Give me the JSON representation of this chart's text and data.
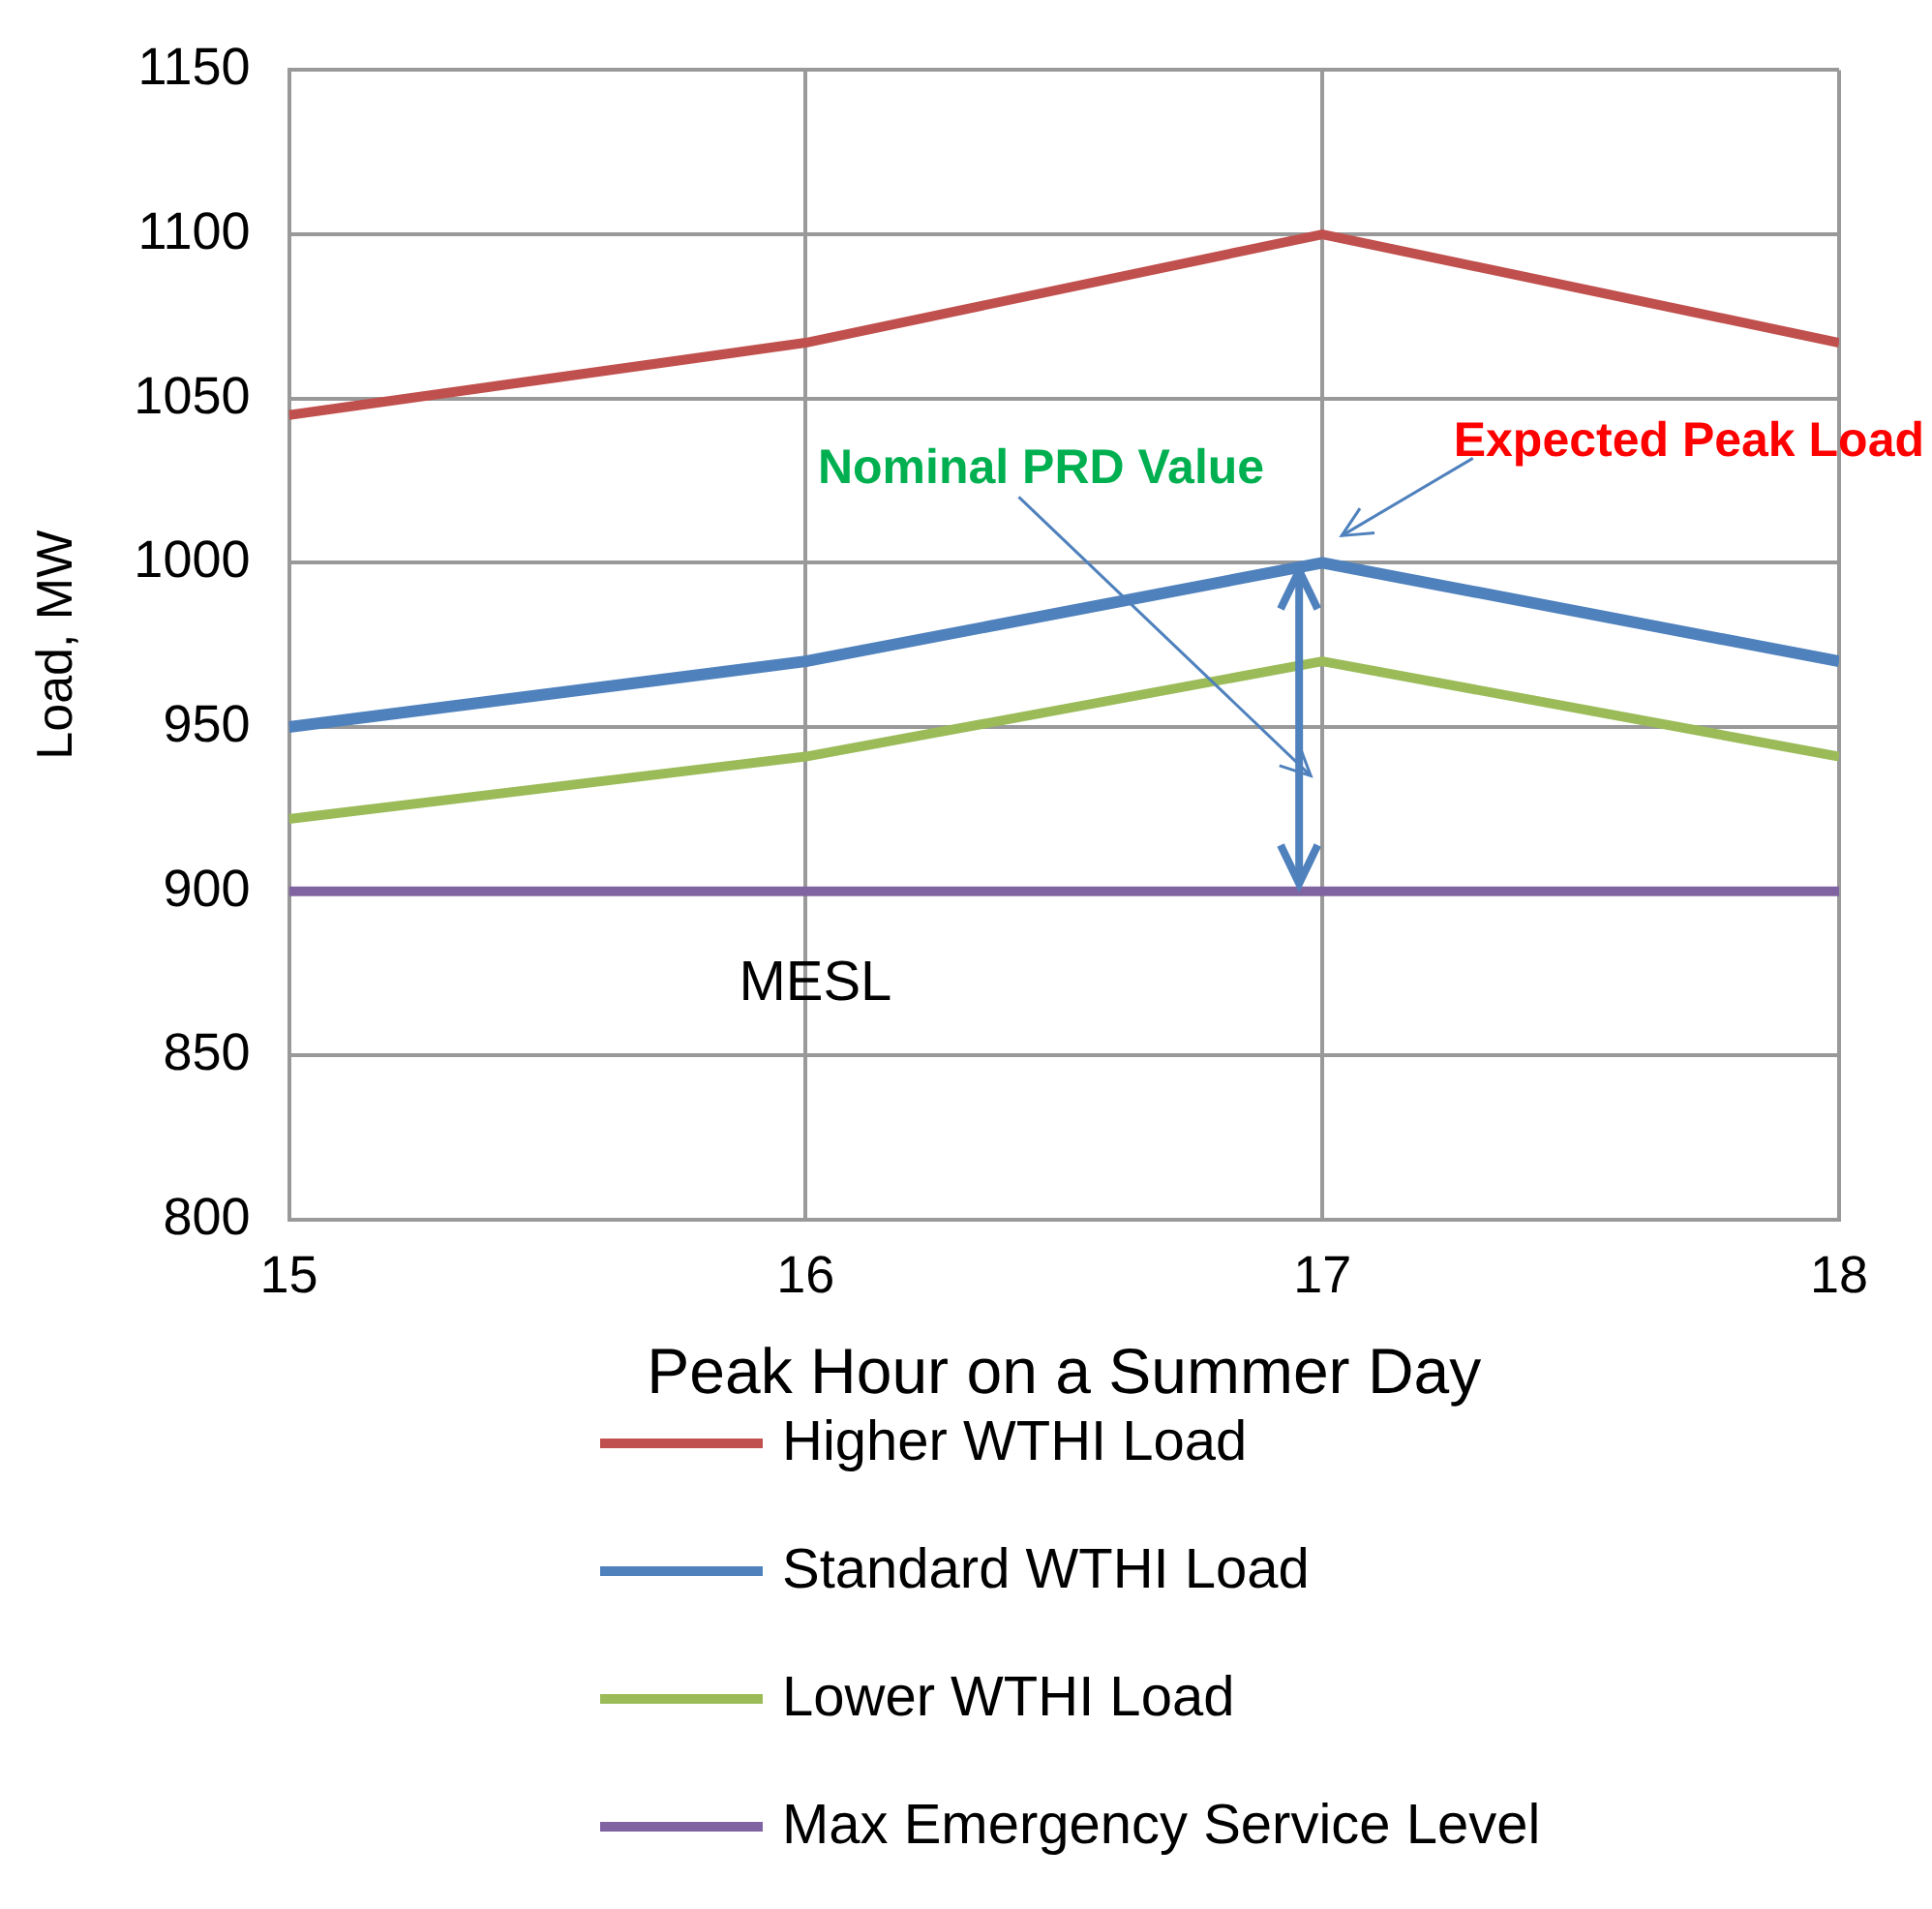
{
  "chart_data": {
    "type": "line",
    "xlabel": "Peak Hour on a Summer Day",
    "ylabel": "Load, MW",
    "x": [
      15,
      16,
      17,
      18
    ],
    "series": [
      {
        "name": "Higher WTHI Load",
        "color": "#c0504d",
        "values": [
          1045,
          1067,
          1100,
          1067
        ]
      },
      {
        "name": "Standard WTHI Load",
        "color": "#4f81bd",
        "values": [
          950,
          970,
          1000,
          970
        ]
      },
      {
        "name": "Lower WTHI Load",
        "color": "#9bbb59",
        "values": [
          922,
          941,
          970,
          941
        ]
      },
      {
        "name": "Max Emergency Service Level",
        "color": "#8064a2",
        "values": [
          900,
          900,
          900,
          900
        ]
      }
    ],
    "xlim": [
      15,
      18
    ],
    "xticks": [
      15,
      16,
      17,
      18
    ],
    "ylim": [
      800,
      1150
    ],
    "yticks": [
      800,
      850,
      900,
      950,
      1000,
      1050,
      1100,
      1150
    ],
    "grid": true,
    "legend": "bottom",
    "marker": "none",
    "line_style": "solid",
    "annotations": [
      "Expected Peak Load",
      "Nominal PRD Value",
      {
        "text": "MESL",
        "x": 16,
        "y": 900
      }
    ]
  }
}
